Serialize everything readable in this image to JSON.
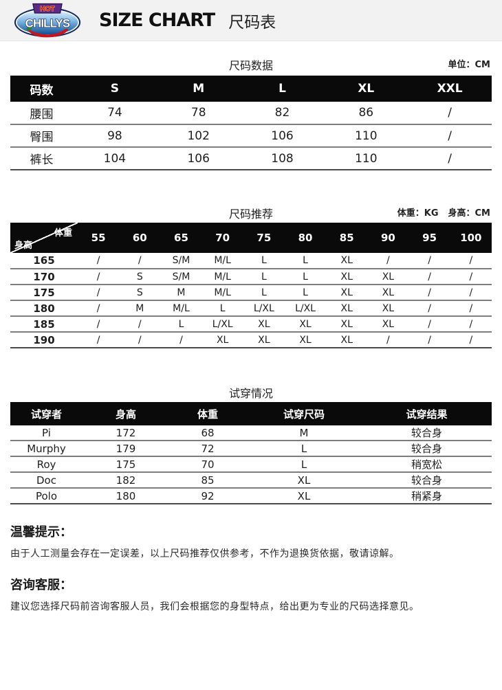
{
  "header": {
    "brand_top": "HOT",
    "brand_main": "CHILLYS",
    "title_en": "SIZE CHART",
    "title_zh": "尺码表"
  },
  "colors": {
    "brand_bar_bg": "#f2f2f2",
    "table_header_bg": "#0a0a0a",
    "table_header_text": "#ffffff",
    "logo_blue_dark": "#0f4f93",
    "logo_blue_light": "#e8f3fb",
    "logo_purple": "#5c2b87",
    "logo_red": "#c8151d",
    "logo_gold": "#f7cf4e",
    "logo_green": "#2e7d32"
  },
  "size_data": {
    "title": "尺码数据",
    "unit_label": "单位：CM",
    "columns": [
      "码数",
      "S",
      "M",
      "L",
      "XL",
      "XXL"
    ],
    "rows": [
      {
        "label": "腰围",
        "values": [
          "74",
          "78",
          "82",
          "86",
          "/"
        ]
      },
      {
        "label": "臀围",
        "values": [
          "98",
          "102",
          "106",
          "110",
          "/"
        ]
      },
      {
        "label": "裤长",
        "values": [
          "104",
          "106",
          "108",
          "110",
          "/"
        ]
      }
    ]
  },
  "size_recommend": {
    "title": "尺码推荐",
    "unit_weight": "体重：KG",
    "unit_height": "身高：CM",
    "corner_top": "体重",
    "corner_bottom": "身高",
    "weight_columns": [
      "55",
      "60",
      "65",
      "70",
      "75",
      "80",
      "85",
      "90",
      "95",
      "100"
    ],
    "rows": [
      {
        "height": "165",
        "values": [
          "/",
          "/",
          "S/M",
          "M/L",
          "L",
          "L",
          "XL",
          "/",
          "/",
          "/"
        ]
      },
      {
        "height": "170",
        "values": [
          "/",
          "S",
          "S/M",
          "M/L",
          "L",
          "L",
          "XL",
          "XL",
          "/",
          "/"
        ]
      },
      {
        "height": "175",
        "values": [
          "/",
          "S",
          "M",
          "M/L",
          "L",
          "L",
          "XL",
          "XL",
          "/",
          "/"
        ]
      },
      {
        "height": "180",
        "values": [
          "/",
          "M",
          "M/L",
          "L",
          "L/XL",
          "L/XL",
          "XL",
          "XL",
          "/",
          "/"
        ]
      },
      {
        "height": "185",
        "values": [
          "/",
          "/",
          "L",
          "L/XL",
          "XL",
          "XL",
          "XL",
          "XL",
          "/",
          "/"
        ]
      },
      {
        "height": "190",
        "values": [
          "/",
          "/",
          "/",
          "XL",
          "XL",
          "XL",
          "XL",
          "/",
          "/",
          "/"
        ]
      }
    ]
  },
  "fitting": {
    "title": "试穿情况",
    "columns": [
      "试穿者",
      "身高",
      "体重",
      "试穿尺码",
      "试穿结果"
    ],
    "rows": [
      [
        "Pi",
        "172",
        "68",
        "M",
        "较合身"
      ],
      [
        "Murphy",
        "179",
        "72",
        "L",
        "较合身"
      ],
      [
        "Roy",
        "175",
        "70",
        "L",
        "稍宽松"
      ],
      [
        "Doc",
        "182",
        "85",
        "XL",
        "较合身"
      ],
      [
        "Polo",
        "180",
        "92",
        "XL",
        "稍紧身"
      ]
    ]
  },
  "notes": [
    {
      "heading": "温馨提示：",
      "body": "由于人工测量会存在一定误差，以上尺码推荐仅供参考，不作为退换货依据，敬请谅解。"
    },
    {
      "heading": "咨询客服：",
      "body": "建议您选择尺码前咨询客服人员，我们会根据您的身型特点，给出更为专业的尺码选择意见。"
    }
  ]
}
